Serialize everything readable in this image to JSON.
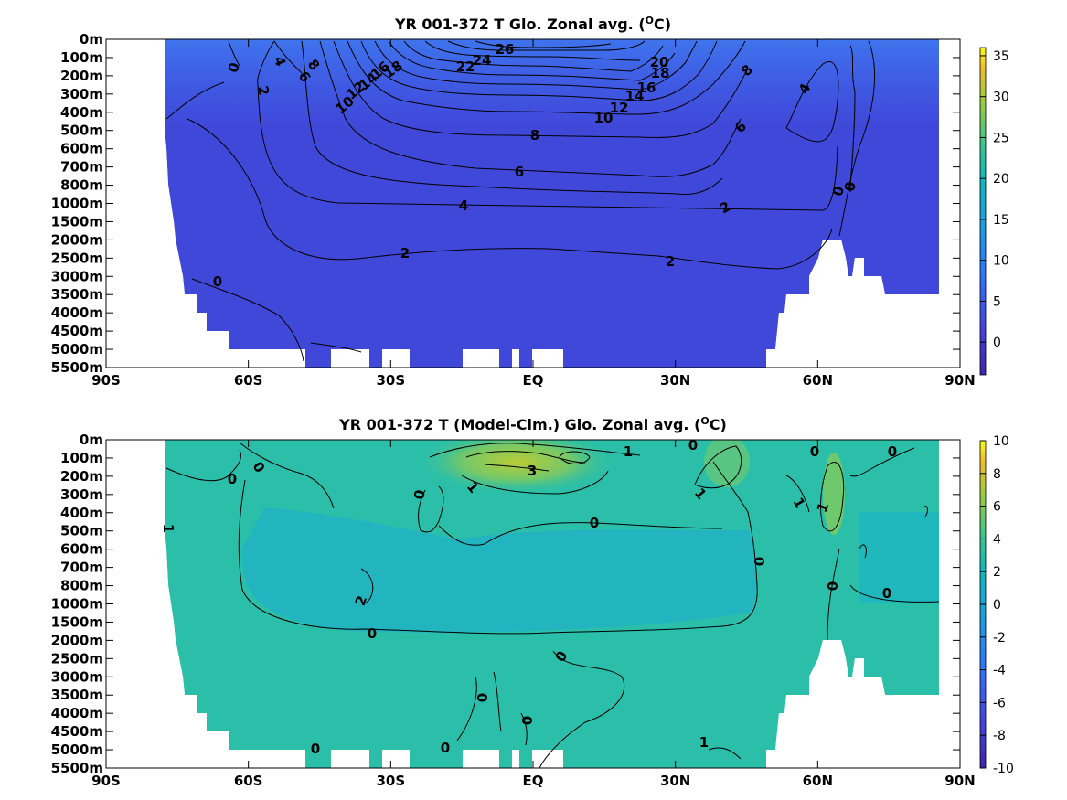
{
  "chart_data": [
    {
      "type": "heatmap",
      "title": "YR 001-372 T Glo. Zonal avg. (",
      "title_unit_sup": "O",
      "title_unit_tail": "C)",
      "xticks": [
        "90S",
        "60S",
        "30S",
        "EQ",
        "30N",
        "60N",
        "90N"
      ],
      "yticks": [
        "0m",
        "100m",
        "200m",
        "300m",
        "400m",
        "500m",
        "600m",
        "700m",
        "800m",
        "1000m",
        "1500m",
        "2000m",
        "2500m",
        "3000m",
        "3500m",
        "4000m",
        "4500m",
        "5000m",
        "5500m"
      ],
      "colorbar_ticks": [
        "35",
        "30",
        "25",
        "20",
        "15",
        "10",
        "5",
        "0"
      ],
      "colorbar_range": [
        -4,
        36
      ],
      "contour_labels": [
        "26",
        "24",
        "22",
        "20",
        "18",
        "18",
        "16",
        "16",
        "14",
        "14",
        "12",
        "12",
        "10",
        "10",
        "8",
        "8",
        "8",
        "6",
        "6",
        "6",
        "4",
        "4",
        "4",
        "2",
        "2",
        "2",
        "2",
        "0",
        "0",
        "0",
        "0"
      ]
    },
    {
      "type": "heatmap",
      "title": "YR 001-372 T (Model-Clm.) Glo. Zonal avg. (",
      "title_unit_sup": "O",
      "title_unit_tail": "C)",
      "xticks": [
        "90S",
        "60S",
        "30S",
        "EQ",
        "30N",
        "60N",
        "90N"
      ],
      "yticks": [
        "0m",
        "100m",
        "200m",
        "300m",
        "400m",
        "500m",
        "600m",
        "700m",
        "800m",
        "1000m",
        "1500m",
        "2000m",
        "2500m",
        "3000m",
        "3500m",
        "4000m",
        "4500m",
        "5000m",
        "5500m"
      ],
      "colorbar_ticks": [
        "10",
        "8",
        "6",
        "4",
        "2",
        "0",
        "-2",
        "-4",
        "-6",
        "-8",
        "-10"
      ],
      "colorbar_range": [
        -10,
        10
      ],
      "contour_labels": [
        "0",
        "0",
        "0",
        "0",
        "0",
        "0",
        "0",
        "0",
        "0",
        "0",
        "0",
        "0",
        "0",
        "0",
        "0",
        "0",
        "1",
        "1",
        "1",
        "1",
        "1",
        "1",
        "1",
        "2",
        "3"
      ]
    }
  ]
}
